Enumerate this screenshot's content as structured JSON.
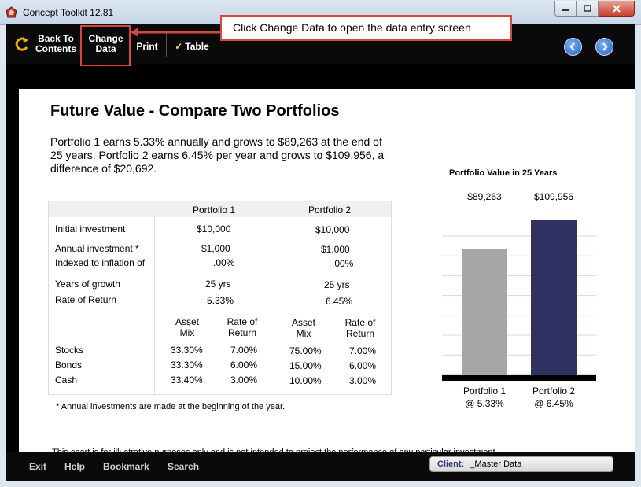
{
  "window": {
    "title": "Concept Toolkit 12.81"
  },
  "toolbar": {
    "back_label": "Back To Contents",
    "change_data_line1": "Change",
    "change_data_line2": "Data",
    "print_label": "Print",
    "table_label": "Table",
    "table_check": "✓"
  },
  "annotation": {
    "callout_text": "Click Change Data to open the data entry screen"
  },
  "page": {
    "title": "Future Value - Compare Two Portfolios",
    "summary": "Portfolio 1 earns 5.33% annually and grows to $89,263 at the end of 25 years. Portfolio 2 earns 6.45% per year and grows to $109,956, a difference of $20,692.",
    "footnote": "* Annual investments are made at the beginning of the year.",
    "disclaimer": "This chart is for illustrative purposes only and is not intended to project the performance of any particular investment."
  },
  "table": {
    "col1": "Portfolio 1",
    "col2": "Portfolio 2",
    "rows": {
      "initial": {
        "label": "Initial investment",
        "p1": "$10,000",
        "p2": "$10,000"
      },
      "annual": {
        "label": "Annual investment *",
        "p1": "$1,000",
        "p2": "$1,000"
      },
      "indexed": {
        "label": "Indexed to inflation of",
        "p1": ".00%",
        "p2": ".00%"
      },
      "years": {
        "label": "Years of growth",
        "p1": "25  yrs",
        "p2": "25  yrs"
      },
      "rate": {
        "label": "Rate of Return",
        "p1": "5.33%",
        "p2": "6.45%"
      }
    },
    "mix_headers": {
      "asset_l1": "Asset",
      "asset_l2": "Mix",
      "ror_l1": "Rate of",
      "ror_l2": "Return"
    },
    "assets": [
      {
        "label": "Stocks",
        "p1_mix": "33.30%",
        "p1_ror": "7.00%",
        "p2_mix": "75.00%",
        "p2_ror": "7.00%"
      },
      {
        "label": "Bonds",
        "p1_mix": "33.30%",
        "p1_ror": "6.00%",
        "p2_mix": "15.00%",
        "p2_ror": "6.00%"
      },
      {
        "label": "Cash",
        "p1_mix": "33.40%",
        "p1_ror": "3.00%",
        "p2_mix": "10.00%",
        "p2_ror": "3.00%"
      }
    ]
  },
  "chart_data": {
    "type": "bar",
    "title": "Portfolio Value in 25 Years",
    "categories": [
      "Portfolio 1",
      "Portfolio 2"
    ],
    "category_sublabels": [
      "@ 5.33%",
      "@ 6.45%"
    ],
    "values": [
      89263,
      109956
    ],
    "value_labels": [
      "$89,263",
      "$109,956"
    ],
    "colors": [
      "#a6a6a6",
      "#2f3163"
    ],
    "ylim": [
      0,
      110000
    ],
    "grid": true
  },
  "bottombar": {
    "exit": "Exit",
    "help": "Help",
    "bookmark": "Bookmark",
    "search": "Search",
    "client_label": "Client:",
    "client_value": "_Master Data"
  },
  "icons": {
    "back": "curved-arrow-icon",
    "prev": "chevron-left-icon",
    "next": "chevron-right-icon"
  },
  "colors": {
    "accent_red": "#d7463f",
    "nav_blue": "#1c62c9"
  }
}
